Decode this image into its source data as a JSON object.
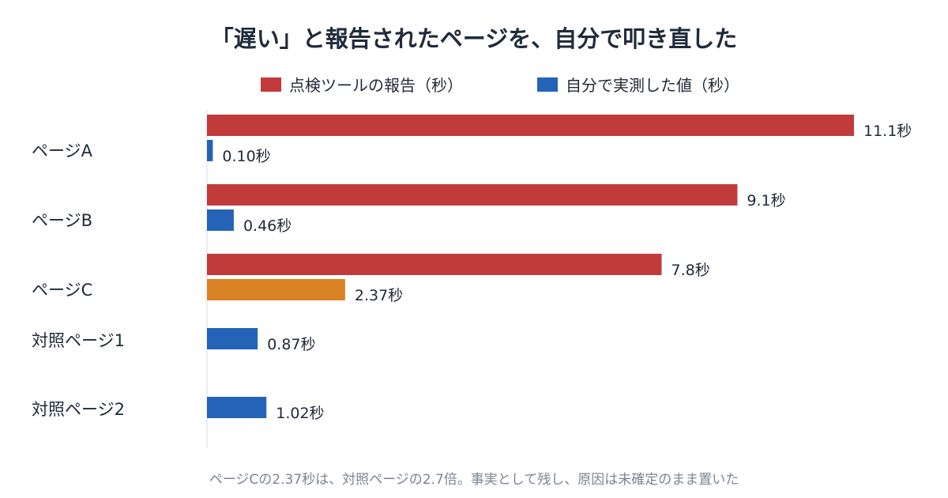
{
  "title": "「遅い」と報告されたページを、自分で叩き直した",
  "footnote": "ページCの2.37秒は、対照ページの2.7倍。事実として残し、原因は未確定のまま置いた",
  "colors": {
    "reported": "#c23b3b",
    "measured": "#2563b8",
    "highlight": "#d98324",
    "axis": "#d9dde3"
  },
  "chart_data": {
    "type": "bar",
    "orientation": "horizontal",
    "grid": false,
    "legend_position": "top",
    "unit": "秒",
    "categories": [
      "ページA",
      "ページB",
      "ページC",
      "対照ページ1",
      "対照ページ2"
    ],
    "series": [
      {
        "name": "点検ツールの報告（秒）",
        "values": [
          11.1,
          9.1,
          7.8,
          null,
          null
        ]
      },
      {
        "name": "自分で実測した値（秒）",
        "values": [
          0.1,
          0.46,
          2.37,
          0.87,
          1.02
        ]
      }
    ],
    "value_labels": {
      "reported": [
        "11.1秒",
        "9.1秒",
        "7.8秒",
        null,
        null
      ],
      "measured": [
        "0.10秒",
        "0.46秒",
        "2.37秒",
        "0.87秒",
        "1.02秒"
      ]
    },
    "highlighted_point": {
      "series": "自分で実測した値（秒）",
      "category": "ページC"
    },
    "xlim": [
      0,
      11.1
    ]
  }
}
